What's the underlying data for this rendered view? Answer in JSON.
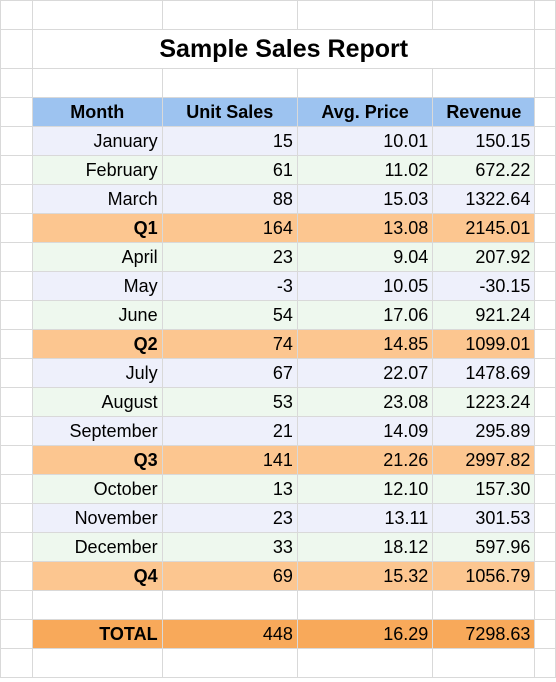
{
  "report": {
    "title": "Sample Sales Report",
    "headers": [
      "Month",
      "Unit Sales",
      "Avg. Price",
      "Revenue"
    ],
    "rows": [
      {
        "kind": "month",
        "label": "January",
        "units": "15",
        "price": "10.01",
        "revenue": "150.15",
        "stripe": "a"
      },
      {
        "kind": "month",
        "label": "February",
        "units": "61",
        "price": "11.02",
        "revenue": "672.22",
        "stripe": "b"
      },
      {
        "kind": "month",
        "label": "March",
        "units": "88",
        "price": "15.03",
        "revenue": "1322.64",
        "stripe": "a"
      },
      {
        "kind": "quarter",
        "label": "Q1",
        "units": "164",
        "price": "13.08",
        "revenue": "2145.01"
      },
      {
        "kind": "month",
        "label": "April",
        "units": "23",
        "price": "9.04",
        "revenue": "207.92",
        "stripe": "b"
      },
      {
        "kind": "month",
        "label": "May",
        "units": "-3",
        "price": "10.05",
        "revenue": "-30.15",
        "stripe": "a",
        "negative": true
      },
      {
        "kind": "month",
        "label": "June",
        "units": "54",
        "price": "17.06",
        "revenue": "921.24",
        "stripe": "b"
      },
      {
        "kind": "quarter",
        "label": "Q2",
        "units": "74",
        "price": "14.85",
        "revenue": "1099.01"
      },
      {
        "kind": "month",
        "label": "July",
        "units": "67",
        "price": "22.07",
        "revenue": "1478.69",
        "stripe": "a"
      },
      {
        "kind": "month",
        "label": "August",
        "units": "53",
        "price": "23.08",
        "revenue": "1223.24",
        "stripe": "b"
      },
      {
        "kind": "month",
        "label": "September",
        "units": "21",
        "price": "14.09",
        "revenue": "295.89",
        "stripe": "a"
      },
      {
        "kind": "quarter",
        "label": "Q3",
        "units": "141",
        "price": "21.26",
        "revenue": "2997.82"
      },
      {
        "kind": "month",
        "label": "October",
        "units": "13",
        "price": "12.10",
        "revenue": "157.30",
        "stripe": "b"
      },
      {
        "kind": "month",
        "label": "November",
        "units": "23",
        "price": "13.11",
        "revenue": "301.53",
        "stripe": "a"
      },
      {
        "kind": "month",
        "label": "December",
        "units": "33",
        "price": "18.12",
        "revenue": "597.96",
        "stripe": "b"
      },
      {
        "kind": "quarter",
        "label": "Q4",
        "units": "69",
        "price": "15.32",
        "revenue": "1056.79"
      }
    ],
    "total": {
      "label": "TOTAL",
      "units": "448",
      "price": "16.29",
      "revenue": "7298.63"
    }
  },
  "colors": {
    "header_bg": "#9dc3f0",
    "stripe_a": "#eef0fb",
    "stripe_b": "#eef8ee",
    "quarter_bg": "#fcc690",
    "total_bg": "#f8a95a",
    "negative": "#ff0000"
  }
}
